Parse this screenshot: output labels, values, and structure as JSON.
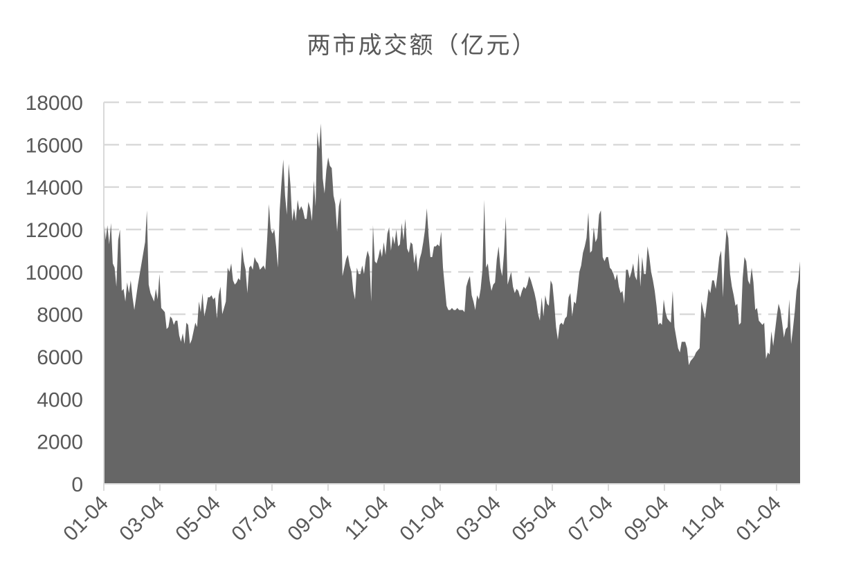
{
  "chart_data": {
    "type": "area",
    "title": "两市成交额（亿元）",
    "xlabel": "",
    "ylabel": "",
    "ylim": [
      0,
      18000
    ],
    "yticks": [
      0,
      2000,
      4000,
      6000,
      8000,
      10000,
      12000,
      14000,
      16000,
      18000
    ],
    "xtick_labels": [
      "01-04",
      "03-04",
      "05-04",
      "07-04",
      "09-04",
      "11-04",
      "01-04",
      "03-04",
      "05-04",
      "07-04",
      "09-04",
      "11-04",
      "01-04"
    ],
    "grid": true,
    "legend": "none",
    "colors": {
      "area": "#666666",
      "grid": "#d9d9d9",
      "text": "#595959"
    },
    "series": [
      {
        "values": [
          12600,
          11500,
          12200,
          11300,
          12300,
          10400,
          10200,
          9300,
          11500,
          12000,
          9100,
          9200,
          8600,
          9500,
          9000,
          9600,
          8800,
          8200,
          8800,
          9400,
          9900,
          10400,
          10900,
          11400,
          12900,
          9400,
          9000,
          8800,
          8600,
          9200,
          8700,
          9900,
          8300,
          8200,
          8100,
          7300,
          7400,
          7900,
          7800,
          7500,
          7700,
          7700,
          7000,
          6700,
          7100,
          6600,
          7600,
          7500,
          6600,
          6800,
          7200,
          7600,
          7400,
          8600,
          8100,
          9000,
          7900,
          8300,
          8800,
          8800,
          8900,
          8700,
          8800,
          7800,
          8900,
          9300,
          8000,
          8300,
          8600,
          10200,
          10000,
          10400,
          9600,
          9400,
          9500,
          9700,
          9600,
          11200,
          10500,
          10100,
          9000,
          10200,
          10300,
          10100,
          10700,
          10500,
          10400,
          10100,
          10200,
          10300,
          10100,
          11500,
          13200,
          12000,
          11800,
          12000,
          11200,
          10200,
          12900,
          14200,
          15300,
          13600,
          12700,
          15100,
          14100,
          12400,
          13000,
          12400,
          13400,
          12900,
          13100,
          12900,
          12500,
          12500,
          13300,
          13000,
          12400,
          14300,
          13100,
          16600,
          15800,
          17000,
          14400,
          13700,
          14800,
          15400,
          15000,
          14900,
          13600,
          13200,
          11900,
          13100,
          13500,
          9800,
          10200,
          10600,
          10800,
          10300,
          10000,
          9100,
          8700,
          10200,
          9900,
          9900,
          10300,
          9900,
          10600,
          11000,
          10700,
          8600,
          12200,
          10500,
          10400,
          10700,
          11100,
          10700,
          11400,
          10800,
          11800,
          12100,
          11000,
          11700,
          11300,
          12000,
          11200,
          11300,
          12300,
          11500,
          12500,
          11100,
          10900,
          11400,
          11300,
          10400,
          10900,
          10000,
          10600,
          10900,
          11400,
          12000,
          13000,
          11700,
          10700,
          10700,
          11200,
          11200,
          11300,
          11200,
          11900,
          10200,
          9300,
          8400,
          8200,
          8200,
          8300,
          8200,
          8200,
          8300,
          8200,
          8200,
          8200,
          8100,
          9300,
          9600,
          9800,
          8900,
          8600,
          8200,
          8900,
          8700,
          9200,
          10100,
          13400,
          10200,
          10400,
          9600,
          9100,
          9400,
          9500,
          10600,
          11200,
          10200,
          9800,
          10900,
          12600,
          9400,
          9700,
          10000,
          9300,
          9000,
          9200,
          9100,
          8800,
          9100,
          9300,
          9200,
          9400,
          9800,
          9600,
          9300,
          9000,
          8600,
          8000,
          7700,
          8800,
          7900,
          8900,
          8500,
          8400,
          9600,
          9400,
          8500,
          7400,
          6800,
          7500,
          7600,
          7500,
          7800,
          7900,
          8800,
          9000,
          7900,
          8600,
          8500,
          9200,
          10000,
          10300,
          10900,
          11200,
          11600,
          12800,
          10900,
          11000,
          12100,
          11400,
          11600,
          12700,
          12900,
          10700,
          10500,
          10700,
          10700,
          10200,
          10100,
          9900,
          9600,
          9900,
          9300,
          9000,
          9100,
          8500,
          10100,
          10100,
          9700,
          10000,
          10400,
          9800,
          9600,
          10900,
          9300,
          10700,
          9900,
          9900,
          11200,
          10700,
          10000,
          9600,
          9100,
          8400,
          7500,
          7600,
          7500,
          8700,
          8100,
          7800,
          7700,
          7600,
          9100,
          7400,
          6900,
          6400,
          6200,
          6700,
          6700,
          6700,
          6400,
          5600,
          5800,
          5900,
          6000,
          6200,
          6300,
          6400,
          8600,
          8200,
          7800,
          8500,
          9200,
          9000,
          9600,
          9600,
          9200,
          9900,
          10700,
          11000,
          8800,
          10800,
          12000,
          11600,
          9900,
          9300,
          8900,
          8400,
          8500,
          7500,
          7600,
          9700,
          10700,
          10500,
          9600,
          9400,
          10200,
          9500,
          8200,
          8300,
          7700,
          7600,
          7500,
          7600,
          5900,
          6200,
          6100,
          7200,
          6500,
          7200,
          7900,
          8500,
          8200,
          7600,
          6900,
          7300,
          7400,
          8700,
          6600,
          7300,
          8100,
          9100,
          9600,
          10500
        ]
      }
    ]
  }
}
